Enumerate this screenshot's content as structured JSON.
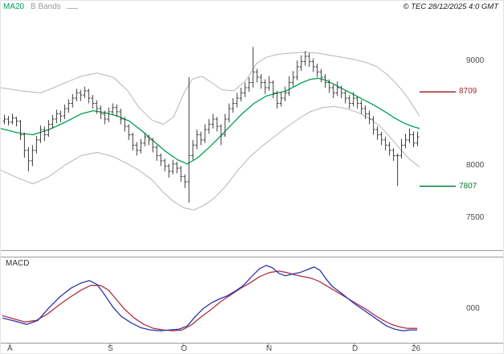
{
  "header": {
    "ma20_label": "MA20",
    "bbands_label": "B Bands",
    "copyright": "© TEC 28/12/2025 4:0 GMT"
  },
  "macd_panel": {
    "label": "MACD"
  },
  "colors": {
    "ma20": "#00a050",
    "bands": "#b5b5b5",
    "candle": "#3c3c3c",
    "macd_line": "#2a35b0",
    "macd_signal": "#b03040",
    "separator": "#9a9a9a",
    "tick": "#8a8a8a",
    "axis_text": "#4a4a4a"
  },
  "chart_data": {
    "type": "ohlc",
    "title": "",
    "legend": [
      "MA20",
      "B Bands"
    ],
    "x_axis": {
      "tick_labels": [
        "A",
        "S",
        "O",
        "N",
        "D",
        "26"
      ]
    },
    "price_axis": {
      "ylim": [
        7180,
        9350
      ],
      "ticks": [
        {
          "label": "9000",
          "value": 9000
        },
        {
          "label": "8000",
          "value": 8000
        },
        {
          "label": "7500",
          "value": 7500
        }
      ]
    },
    "levels": {
      "resistance": {
        "label": "8709",
        "value": 8709,
        "color": "#a02828"
      },
      "support": {
        "label": "7807",
        "value": 7807,
        "color": "#0a7d32"
      }
    },
    "candles": [
      [
        8430,
        8490,
        8400,
        8450
      ],
      [
        8450,
        8480,
        8390,
        8420
      ],
      [
        8420,
        8500,
        8400,
        8460
      ],
      [
        8460,
        8470,
        8380,
        8430
      ],
      [
        8430,
        8440,
        8250,
        8300
      ],
      [
        8300,
        8320,
        8080,
        8150
      ],
      [
        8150,
        8180,
        7950,
        8050
      ],
      [
        8050,
        8200,
        8000,
        8150
      ],
      [
        8150,
        8290,
        8120,
        8250
      ],
      [
        8250,
        8390,
        8220,
        8350
      ],
      [
        8350,
        8380,
        8240,
        8300
      ],
      [
        8300,
        8440,
        8280,
        8400
      ],
      [
        8400,
        8490,
        8360,
        8450
      ],
      [
        8450,
        8540,
        8410,
        8500
      ],
      [
        8500,
        8530,
        8420,
        8480
      ],
      [
        8480,
        8590,
        8450,
        8550
      ],
      [
        8550,
        8640,
        8510,
        8600
      ],
      [
        8600,
        8690,
        8560,
        8650
      ],
      [
        8650,
        8740,
        8620,
        8700
      ],
      [
        8700,
        8730,
        8620,
        8680
      ],
      [
        8680,
        8760,
        8650,
        8720
      ],
      [
        8720,
        8740,
        8600,
        8650
      ],
      [
        8650,
        8680,
        8550,
        8600
      ],
      [
        8600,
        8630,
        8500,
        8550
      ],
      [
        8550,
        8580,
        8450,
        8500
      ],
      [
        8500,
        8530,
        8400,
        8450
      ],
      [
        8450,
        8560,
        8420,
        8520
      ],
      [
        8520,
        8600,
        8490,
        8560
      ],
      [
        8560,
        8590,
        8470,
        8520
      ],
      [
        8520,
        8550,
        8400,
        8450
      ],
      [
        8450,
        8470,
        8330,
        8380
      ],
      [
        8380,
        8400,
        8250,
        8300
      ],
      [
        8300,
        8320,
        8150,
        8200
      ],
      [
        8200,
        8230,
        8100,
        8150
      ],
      [
        8150,
        8260,
        8120,
        8220
      ],
      [
        8220,
        8320,
        8190,
        8280
      ],
      [
        8280,
        8300,
        8200,
        8250
      ],
      [
        8250,
        8270,
        8130,
        8180
      ],
      [
        8180,
        8200,
        8050,
        8100
      ],
      [
        8100,
        8120,
        8000,
        8050
      ],
      [
        8050,
        8070,
        7950,
        8000
      ],
      [
        8000,
        8020,
        7890,
        7950
      ],
      [
        7950,
        8060,
        7920,
        8020
      ],
      [
        8020,
        8040,
        7930,
        7980
      ],
      [
        7980,
        8000,
        7850,
        7900
      ],
      [
        7900,
        7920,
        7790,
        7850
      ],
      [
        7850,
        8850,
        7650,
        8100
      ],
      [
        8100,
        8250,
        8060,
        8200
      ],
      [
        8200,
        8350,
        8160,
        8300
      ],
      [
        8300,
        8330,
        8200,
        8250
      ],
      [
        8250,
        8400,
        8220,
        8350
      ],
      [
        8350,
        8450,
        8310,
        8400
      ],
      [
        8400,
        8500,
        8360,
        8450
      ],
      [
        8450,
        8470,
        8330,
        8380
      ],
      [
        8380,
        8400,
        8200,
        8300
      ],
      [
        8300,
        8500,
        8280,
        8450
      ],
      [
        8450,
        8600,
        8420,
        8550
      ],
      [
        8550,
        8650,
        8510,
        8600
      ],
      [
        8600,
        8700,
        8560,
        8650
      ],
      [
        8650,
        8750,
        8620,
        8700
      ],
      [
        8700,
        8800,
        8660,
        8750
      ],
      [
        8750,
        8850,
        8710,
        8800
      ],
      [
        8800,
        9140,
        8750,
        8900
      ],
      [
        8900,
        8930,
        8800,
        8850
      ],
      [
        8850,
        8880,
        8740,
        8800
      ],
      [
        8800,
        8830,
        8690,
        8750
      ],
      [
        8750,
        8860,
        8720,
        8800
      ],
      [
        8800,
        8820,
        8650,
        8700
      ],
      [
        8700,
        8720,
        8550,
        8600
      ],
      [
        8600,
        8710,
        8570,
        8650
      ],
      [
        8650,
        8760,
        8620,
        8700
      ],
      [
        8700,
        8860,
        8670,
        8800
      ],
      [
        8800,
        8910,
        8760,
        8850
      ],
      [
        8850,
        9010,
        8820,
        8950
      ],
      [
        8950,
        9060,
        8910,
        9000
      ],
      [
        9000,
        9100,
        8960,
        9050
      ],
      [
        9050,
        9080,
        8950,
        9000
      ],
      [
        9000,
        9030,
        8900,
        8950
      ],
      [
        8950,
        8980,
        8850,
        8900
      ],
      [
        8900,
        8930,
        8800,
        8850
      ],
      [
        8850,
        8880,
        8750,
        8800
      ],
      [
        8800,
        8830,
        8700,
        8750
      ],
      [
        8750,
        8780,
        8650,
        8700
      ],
      [
        8700,
        8810,
        8670,
        8750
      ],
      [
        8750,
        8770,
        8650,
        8700
      ],
      [
        8700,
        8720,
        8600,
        8650
      ],
      [
        8650,
        8680,
        8550,
        8600
      ],
      [
        8600,
        8710,
        8570,
        8650
      ],
      [
        8650,
        8670,
        8550,
        8600
      ],
      [
        8600,
        8630,
        8500,
        8550
      ],
      [
        8550,
        8580,
        8450,
        8500
      ],
      [
        8500,
        8530,
        8400,
        8450
      ],
      [
        8450,
        8480,
        8300,
        8350
      ],
      [
        8350,
        8380,
        8250,
        8300
      ],
      [
        8300,
        8330,
        8200,
        8250
      ],
      [
        8250,
        8280,
        8150,
        8200
      ],
      [
        8200,
        8230,
        8100,
        8150
      ],
      [
        8150,
        8170,
        8050,
        8100
      ],
      [
        8100,
        8120,
        7810,
        8100
      ],
      [
        8100,
        8260,
        8070,
        8200
      ],
      [
        8200,
        8310,
        8170,
        8250
      ],
      [
        8250,
        8360,
        8220,
        8300
      ],
      [
        8300,
        8330,
        8180,
        8220
      ],
      [
        8220,
        8330,
        8190,
        8280
      ]
    ],
    "ma20": [
      [
        0,
        8360
      ],
      [
        20,
        8320
      ],
      [
        40,
        8300
      ],
      [
        60,
        8350
      ],
      [
        80,
        8420
      ],
      [
        100,
        8500
      ],
      [
        115,
        8530
      ],
      [
        130,
        8510
      ],
      [
        145,
        8480
      ],
      [
        160,
        8430
      ],
      [
        175,
        8340
      ],
      [
        190,
        8240
      ],
      [
        205,
        8140
      ],
      [
        220,
        8060
      ],
      [
        232,
        8020
      ],
      [
        245,
        8080
      ],
      [
        258,
        8170
      ],
      [
        270,
        8260
      ],
      [
        285,
        8380
      ],
      [
        300,
        8500
      ],
      [
        315,
        8600
      ],
      [
        330,
        8670
      ],
      [
        345,
        8700
      ],
      [
        355,
        8720
      ],
      [
        365,
        8760
      ],
      [
        375,
        8800
      ],
      [
        385,
        8830
      ],
      [
        395,
        8840
      ],
      [
        405,
        8820
      ],
      [
        415,
        8780
      ],
      [
        425,
        8740
      ],
      [
        435,
        8700
      ],
      [
        445,
        8660
      ],
      [
        455,
        8620
      ],
      [
        465,
        8580
      ],
      [
        478,
        8520
      ],
      [
        490,
        8460
      ],
      [
        502,
        8410
      ],
      [
        512,
        8380
      ],
      [
        521,
        8360
      ]
    ],
    "bb_upper": [
      [
        0,
        8750
      ],
      [
        25,
        8720
      ],
      [
        50,
        8700
      ],
      [
        75,
        8780
      ],
      [
        100,
        8860
      ],
      [
        120,
        8890
      ],
      [
        140,
        8850
      ],
      [
        158,
        8720
      ],
      [
        172,
        8560
      ],
      [
        188,
        8440
      ],
      [
        202,
        8400
      ],
      [
        215,
        8470
      ],
      [
        228,
        8700
      ],
      [
        238,
        8830
      ],
      [
        250,
        8860
      ],
      [
        262,
        8800
      ],
      [
        275,
        8730
      ],
      [
        290,
        8720
      ],
      [
        305,
        8820
      ],
      [
        318,
        8980
      ],
      [
        330,
        9040
      ],
      [
        345,
        9070
      ],
      [
        360,
        9080
      ],
      [
        378,
        9090
      ],
      [
        395,
        9080
      ],
      [
        410,
        9060
      ],
      [
        425,
        9040
      ],
      [
        440,
        9020
      ],
      [
        455,
        8990
      ],
      [
        468,
        8950
      ],
      [
        480,
        8880
      ],
      [
        492,
        8790
      ],
      [
        505,
        8670
      ],
      [
        514,
        8560
      ],
      [
        521,
        8480
      ]
    ],
    "bb_lower": [
      [
        0,
        7960
      ],
      [
        20,
        7890
      ],
      [
        40,
        7830
      ],
      [
        60,
        7900
      ],
      [
        80,
        8010
      ],
      [
        100,
        8100
      ],
      [
        120,
        8130
      ],
      [
        140,
        8090
      ],
      [
        158,
        8020
      ],
      [
        172,
        7960
      ],
      [
        188,
        7870
      ],
      [
        202,
        7750
      ],
      [
        215,
        7660
      ],
      [
        228,
        7600
      ],
      [
        240,
        7580
      ],
      [
        252,
        7620
      ],
      [
        265,
        7690
      ],
      [
        280,
        7810
      ],
      [
        295,
        7960
      ],
      [
        310,
        8090
      ],
      [
        325,
        8190
      ],
      [
        340,
        8280
      ],
      [
        355,
        8370
      ],
      [
        370,
        8450
      ],
      [
        385,
        8520
      ],
      [
        400,
        8560
      ],
      [
        415,
        8570
      ],
      [
        430,
        8550
      ],
      [
        445,
        8510
      ],
      [
        460,
        8450
      ],
      [
        472,
        8380
      ],
      [
        484,
        8280
      ],
      [
        496,
        8170
      ],
      [
        508,
        8070
      ],
      [
        521,
        7990
      ]
    ],
    "macd": {
      "ylim": [
        -40,
        62
      ],
      "zero_label": "000",
      "blue": [
        [
          2,
          -11
        ],
        [
          18,
          -15
        ],
        [
          32,
          -19
        ],
        [
          46,
          -14
        ],
        [
          60,
          2
        ],
        [
          74,
          16
        ],
        [
          88,
          27
        ],
        [
          100,
          33
        ],
        [
          110,
          36
        ],
        [
          120,
          31
        ],
        [
          130,
          17
        ],
        [
          140,
          2
        ],
        [
          150,
          -9
        ],
        [
          162,
          -17
        ],
        [
          174,
          -23
        ],
        [
          186,
          -26
        ],
        [
          198,
          -27
        ],
        [
          210,
          -26
        ],
        [
          222,
          -25
        ],
        [
          232,
          -21
        ],
        [
          242,
          -9
        ],
        [
          252,
          1
        ],
        [
          262,
          8
        ],
        [
          272,
          13
        ],
        [
          282,
          17
        ],
        [
          292,
          23
        ],
        [
          302,
          30
        ],
        [
          312,
          41
        ],
        [
          322,
          51
        ],
        [
          330,
          55
        ],
        [
          338,
          52
        ],
        [
          346,
          45
        ],
        [
          354,
          42
        ],
        [
          362,
          44
        ],
        [
          372,
          46
        ],
        [
          382,
          50
        ],
        [
          390,
          53
        ],
        [
          397,
          49
        ],
        [
          404,
          39
        ],
        [
          412,
          29
        ],
        [
          420,
          23
        ],
        [
          430,
          15
        ],
        [
          440,
          7
        ],
        [
          450,
          0
        ],
        [
          460,
          -7
        ],
        [
          470,
          -14
        ],
        [
          480,
          -21
        ],
        [
          490,
          -25
        ],
        [
          500,
          -27
        ],
        [
          510,
          -26
        ],
        [
          518,
          -26
        ]
      ],
      "red": [
        [
          2,
          -8
        ],
        [
          16,
          -12
        ],
        [
          30,
          -16
        ],
        [
          44,
          -14
        ],
        [
          58,
          -6
        ],
        [
          72,
          5
        ],
        [
          86,
          15
        ],
        [
          100,
          24
        ],
        [
          112,
          30
        ],
        [
          124,
          30
        ],
        [
          134,
          24
        ],
        [
          144,
          12
        ],
        [
          154,
          0
        ],
        [
          166,
          -11
        ],
        [
          178,
          -19
        ],
        [
          190,
          -24
        ],
        [
          202,
          -26
        ],
        [
          214,
          -27
        ],
        [
          226,
          -26
        ],
        [
          238,
          -19
        ],
        [
          250,
          -9
        ],
        [
          262,
          0
        ],
        [
          274,
          10
        ],
        [
          286,
          18
        ],
        [
          298,
          26
        ],
        [
          310,
          33
        ],
        [
          322,
          41
        ],
        [
          334,
          46
        ],
        [
          346,
          48
        ],
        [
          356,
          46
        ],
        [
          366,
          43
        ],
        [
          376,
          41
        ],
        [
          386,
          39
        ],
        [
          396,
          35
        ],
        [
          406,
          29
        ],
        [
          416,
          23
        ],
        [
          426,
          17
        ],
        [
          436,
          11
        ],
        [
          446,
          5
        ],
        [
          456,
          -1
        ],
        [
          466,
          -8
        ],
        [
          476,
          -14
        ],
        [
          486,
          -19
        ],
        [
          496,
          -22
        ],
        [
          506,
          -24
        ],
        [
          514,
          -24
        ],
        [
          518,
          -24
        ]
      ]
    }
  }
}
